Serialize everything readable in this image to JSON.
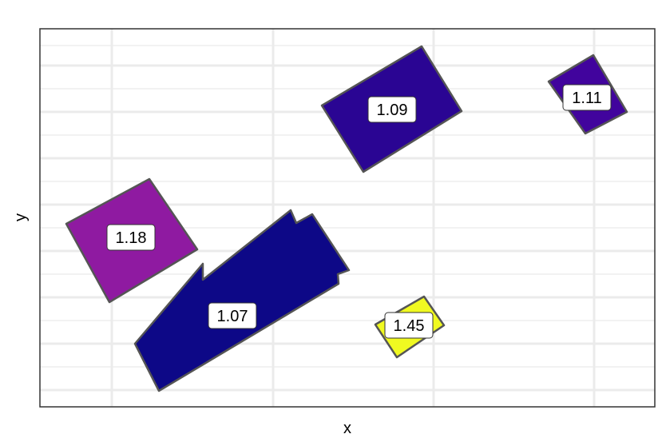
{
  "chart_data": {
    "type": "polygon",
    "title": "",
    "xlabel": "x",
    "ylabel": "y",
    "xticks_shown": false,
    "yticks_shown": false,
    "grid": true,
    "legend": "none",
    "colors": {
      "fill_1.07": "#0d0887",
      "fill_1.09": "#2a0593",
      "fill_1.11": "#41049d",
      "fill_1.18": "#8f1aa1",
      "fill_1.45": "#f0f921",
      "outline": "#555555",
      "grid": "#ebebeb",
      "panel_border": "#333333"
    },
    "shapes": [
      {
        "label": "1.07",
        "value": 1.07,
        "fill": "#0d0887"
      },
      {
        "label": "1.09",
        "value": 1.09,
        "fill": "#2a0593"
      },
      {
        "label": "1.11",
        "value": 1.11,
        "fill": "#41049d"
      },
      {
        "label": "1.18",
        "value": 1.18,
        "fill": "#8f1aa1"
      },
      {
        "label": "1.45",
        "value": 1.45,
        "fill": "#f0f921"
      }
    ]
  }
}
